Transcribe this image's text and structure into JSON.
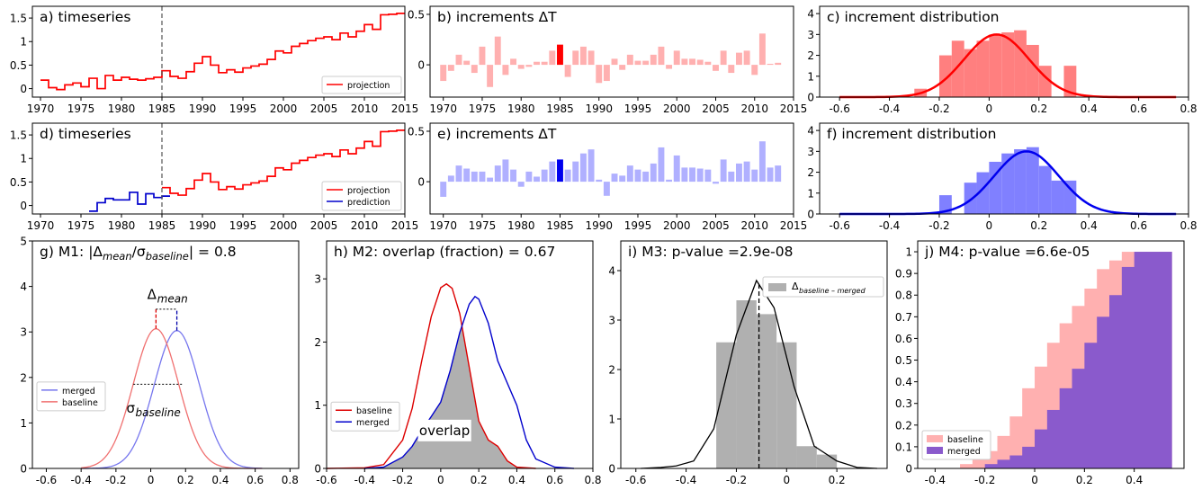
{
  "chart_data": [
    {
      "id": "a",
      "type": "line",
      "title": "a) timeseries",
      "xlim": [
        1969,
        2015
      ],
      "ylim": [
        -0.18,
        1.75
      ],
      "xticks": [
        1970,
        1975,
        1980,
        1985,
        1990,
        1995,
        2000,
        2005,
        2010,
        2015
      ],
      "yticks": [
        0.0,
        0.5,
        1.0,
        1.5
      ],
      "vline": 1985,
      "legend_position": "lower-right",
      "series": [
        {
          "name": "projection",
          "color": "#ff0000",
          "step": true,
          "x": [
            1970,
            1971,
            1972,
            1973,
            1974,
            1975,
            1976,
            1977,
            1978,
            1979,
            1980,
            1981,
            1982,
            1983,
            1984,
            1985,
            1986,
            1987,
            1988,
            1989,
            1990,
            1991,
            1992,
            1993,
            1994,
            1995,
            1996,
            1997,
            1998,
            1999,
            2000,
            2001,
            2002,
            2003,
            2004,
            2005,
            2006,
            2007,
            2008,
            2009,
            2010,
            2011,
            2012,
            2013,
            2014
          ],
          "y": [
            0.18,
            0.02,
            -0.02,
            0.08,
            0.12,
            0.04,
            0.22,
            0.0,
            0.28,
            0.18,
            0.24,
            0.2,
            0.18,
            0.21,
            0.24,
            0.38,
            0.26,
            0.22,
            0.36,
            0.54,
            0.68,
            0.5,
            0.34,
            0.4,
            0.35,
            0.44,
            0.48,
            0.52,
            0.62,
            0.8,
            0.76,
            0.9,
            0.96,
            1.02,
            1.07,
            1.1,
            1.04,
            1.18,
            1.1,
            1.22,
            1.36,
            1.26,
            1.57,
            1.58,
            1.6
          ]
        }
      ]
    },
    {
      "id": "b",
      "type": "bar",
      "title": "b) increments ΔT",
      "xlim": [
        1968.3,
        2015
      ],
      "ylim": [
        -0.32,
        0.58
      ],
      "xticks": [
        1970,
        1975,
        1980,
        1985,
        1990,
        1995,
        2000,
        2005,
        2010,
        2015
      ],
      "yticks": [
        0.0,
        0.5
      ],
      "color": "#ffb0b0",
      "highlight": {
        "x": 1985,
        "color": "#ff0000"
      },
      "x": [
        1970,
        1971,
        1972,
        1973,
        1974,
        1975,
        1976,
        1977,
        1978,
        1979,
        1980,
        1981,
        1982,
        1983,
        1984,
        1985,
        1986,
        1987,
        1988,
        1989,
        1990,
        1991,
        1992,
        1993,
        1994,
        1995,
        1996,
        1997,
        1998,
        1999,
        2000,
        2001,
        2002,
        2003,
        2004,
        2005,
        2006,
        2007,
        2008,
        2009,
        2010,
        2011,
        2012,
        2013
      ],
      "values": [
        -0.16,
        -0.06,
        0.1,
        0.04,
        -0.08,
        0.18,
        -0.22,
        0.28,
        -0.1,
        0.06,
        -0.04,
        -0.02,
        0.03,
        0.03,
        0.14,
        0.2,
        -0.12,
        0.14,
        0.18,
        0.14,
        -0.18,
        -0.16,
        0.06,
        -0.05,
        0.1,
        0.04,
        0.04,
        0.1,
        0.18,
        -0.04,
        0.14,
        0.06,
        0.06,
        0.05,
        0.03,
        -0.06,
        0.14,
        -0.08,
        0.12,
        0.14,
        -0.1,
        0.31,
        0.01,
        0.02
      ]
    },
    {
      "id": "c",
      "type": "bar",
      "title": "c) increment distribution",
      "xlim": [
        -0.68,
        0.8
      ],
      "ylim": [
        0,
        4.35
      ],
      "xticks": [
        -0.6,
        -0.4,
        -0.2,
        0.0,
        0.2,
        0.4,
        0.6,
        0.8
      ],
      "yticks": [
        0,
        1,
        2,
        3,
        4
      ],
      "color": "#ff7f7f",
      "bin_width": 0.05,
      "bins": [
        -0.3,
        -0.25,
        -0.2,
        -0.15,
        -0.1,
        -0.05,
        0.0,
        0.05,
        0.1,
        0.15,
        0.2,
        0.25,
        0.3
      ],
      "values": [
        0.4,
        0.0,
        2.0,
        2.7,
        2.3,
        2.7,
        3.0,
        3.1,
        3.2,
        2.5,
        1.5,
        0.0,
        1.5
      ],
      "curve": {
        "color": "#ff0000",
        "mean": 0.03,
        "sd": 0.13,
        "peak": 3.0,
        "xmin": -0.6,
        "xmax": 0.75
      }
    },
    {
      "id": "d",
      "type": "line",
      "title": "d) timeseries",
      "xlim": [
        1969,
        2015
      ],
      "ylim": [
        -0.18,
        1.75
      ],
      "xticks": [
        1970,
        1975,
        1980,
        1985,
        1990,
        1995,
        2000,
        2005,
        2010,
        2015
      ],
      "yticks": [
        0.0,
        0.5,
        1.0,
        1.5
      ],
      "vline": 1985,
      "legend_position": "lower-right",
      "series": [
        {
          "name": "projection",
          "color": "#ff0000",
          "step": true,
          "x": [
            1985,
            1986,
            1987,
            1988,
            1989,
            1990,
            1991,
            1992,
            1993,
            1994,
            1995,
            1996,
            1997,
            1998,
            1999,
            2000,
            2001,
            2002,
            2003,
            2004,
            2005,
            2006,
            2007,
            2008,
            2009,
            2010,
            2011,
            2012,
            2013,
            2014
          ],
          "y": [
            0.38,
            0.26,
            0.22,
            0.36,
            0.54,
            0.68,
            0.5,
            0.34,
            0.4,
            0.35,
            0.44,
            0.48,
            0.52,
            0.62,
            0.8,
            0.76,
            0.9,
            0.96,
            1.02,
            1.07,
            1.1,
            1.04,
            1.18,
            1.1,
            1.22,
            1.36,
            1.26,
            1.57,
            1.58,
            1.6
          ]
        },
        {
          "name": "prediction",
          "color": "#0000cc",
          "step": true,
          "x": [
            1976,
            1977,
            1978,
            1979,
            1980,
            1981,
            1982,
            1983,
            1984,
            1985
          ],
          "y": [
            -0.12,
            0.06,
            0.15,
            0.12,
            0.12,
            0.28,
            0.03,
            0.25,
            0.17,
            0.2
          ]
        }
      ]
    },
    {
      "id": "e",
      "type": "bar",
      "title": "e) increments ΔT",
      "xlim": [
        1968.3,
        2015
      ],
      "ylim": [
        -0.32,
        0.58
      ],
      "xticks": [
        1970,
        1975,
        1980,
        1985,
        1990,
        1995,
        2000,
        2005,
        2010,
        2015
      ],
      "yticks": [
        0.0,
        0.5
      ],
      "color": "#b0b0ff",
      "highlight": {
        "x": 1985,
        "color": "#0000ee"
      },
      "x": [
        1970,
        1971,
        1972,
        1973,
        1974,
        1975,
        1976,
        1977,
        1978,
        1979,
        1980,
        1981,
        1982,
        1983,
        1984,
        1985,
        1986,
        1987,
        1988,
        1989,
        1990,
        1991,
        1992,
        1993,
        1994,
        1995,
        1996,
        1997,
        1998,
        1999,
        2000,
        2001,
        2002,
        2003,
        2004,
        2005,
        2006,
        2007,
        2008,
        2009,
        2010,
        2011,
        2012,
        2013
      ],
      "values": [
        -0.15,
        0.06,
        0.16,
        0.13,
        0.1,
        0.1,
        0.04,
        0.16,
        0.22,
        0.12,
        -0.05,
        0.1,
        0.05,
        0.12,
        0.2,
        0.22,
        0.12,
        0.2,
        0.28,
        0.32,
        0.02,
        -0.14,
        0.08,
        0.06,
        0.16,
        0.12,
        0.1,
        0.18,
        0.34,
        0.02,
        0.26,
        0.14,
        0.14,
        0.13,
        0.12,
        -0.02,
        0.22,
        0.1,
        0.18,
        0.2,
        0.12,
        0.4,
        0.14,
        0.16
      ]
    },
    {
      "id": "f",
      "type": "bar",
      "title": "f) increment distribution",
      "xlim": [
        -0.68,
        0.8
      ],
      "ylim": [
        0,
        4.35
      ],
      "xticks": [
        -0.6,
        -0.4,
        -0.2,
        0.0,
        0.2,
        0.4,
        0.6,
        0.8
      ],
      "yticks": [
        0,
        1,
        2,
        3,
        4
      ],
      "color": "#8080ff",
      "bin_width": 0.05,
      "bins": [
        -0.2,
        -0.15,
        -0.1,
        -0.05,
        0.0,
        0.05,
        0.1,
        0.15,
        0.2,
        0.25,
        0.3
      ],
      "values": [
        0.9,
        0.0,
        1.5,
        2.0,
        2.5,
        2.9,
        3.1,
        3.2,
        2.3,
        1.6,
        1.6
      ],
      "curve": {
        "color": "#0000ee",
        "mean": 0.15,
        "sd": 0.13,
        "peak": 3.0,
        "xmin": -0.6,
        "xmax": 0.75
      }
    },
    {
      "id": "g",
      "type": "line",
      "title": "g) M1: |Δ",
      "title_parts": [
        "g) M1: |Δ",
        "mean",
        "/σ",
        "baseline",
        "| = 0.8"
      ],
      "xlim": [
        -0.68,
        0.85
      ],
      "ylim": [
        0,
        5
      ],
      "xticks": [
        -0.6,
        -0.4,
        -0.2,
        0.0,
        0.2,
        0.4,
        0.6,
        0.8
      ],
      "yticks": [
        0,
        1,
        2,
        3,
        4,
        5
      ],
      "legend_position": "center-left",
      "series": [
        {
          "name": "merged",
          "color": "#7777ee",
          "mean": 0.15,
          "sd": 0.13,
          "peak": 3.03
        },
        {
          "name": "baseline",
          "color": "#f07070",
          "mean": 0.03,
          "sd": 0.13,
          "peak": 3.07
        }
      ],
      "annotations": {
        "delta_mean": "Δ",
        "delta_mean_sub": "mean",
        "sigma": "σ",
        "sigma_sub": "baseline"
      }
    },
    {
      "id": "h",
      "type": "area",
      "title": "h) M2: overlap (fraction) = 0.67",
      "xlim": [
        -0.6,
        0.8
      ],
      "ylim": [
        0,
        3.6
      ],
      "xticks": [
        -0.6,
        -0.4,
        -0.2,
        0.0,
        0.2,
        0.4,
        0.6,
        0.8
      ],
      "yticks": [
        0,
        1,
        2,
        3
      ],
      "legend_position": "center-left",
      "series": [
        {
          "name": "baseline",
          "color": "#dd0000",
          "x": [
            -0.6,
            -0.4,
            -0.3,
            -0.2,
            -0.15,
            -0.1,
            -0.05,
            0.0,
            0.03,
            0.06,
            0.1,
            0.15,
            0.2,
            0.25,
            0.3,
            0.35,
            0.4,
            0.5
          ],
          "y": [
            0,
            0.01,
            0.06,
            0.45,
            0.95,
            1.7,
            2.4,
            2.86,
            2.92,
            2.85,
            2.45,
            1.6,
            0.75,
            0.45,
            0.35,
            0.12,
            0.02,
            0
          ]
        },
        {
          "name": "merged",
          "color": "#0000cc",
          "x": [
            -0.4,
            -0.3,
            -0.2,
            -0.15,
            -0.1,
            -0.05,
            0.0,
            0.05,
            0.1,
            0.15,
            0.18,
            0.2,
            0.25,
            0.3,
            0.35,
            0.4,
            0.45,
            0.5,
            0.6,
            0.7
          ],
          "y": [
            0,
            0.02,
            0.18,
            0.35,
            0.6,
            0.82,
            1.05,
            1.55,
            2.15,
            2.6,
            2.72,
            2.68,
            2.3,
            1.7,
            1.35,
            1.0,
            0.45,
            0.15,
            0.02,
            0
          ]
        }
      ],
      "overlap_label": "overlap"
    },
    {
      "id": "i",
      "type": "bar",
      "title": "i) M3: p-value =2.9e-08",
      "xlim": [
        -0.66,
        0.4
      ],
      "ylim": [
        0,
        4.6
      ],
      "xticks": [
        -0.6,
        -0.4,
        -0.2,
        0.0,
        0.2
      ],
      "yticks": [
        0,
        1,
        2,
        3,
        4
      ],
      "color": "#b0b0b0",
      "legend_position": "upper-right",
      "legend_label": "Δ",
      "legend_label_sub": "baseline – merged",
      "bins": [
        -0.28,
        -0.2,
        -0.12,
        -0.04,
        0.04,
        0.12
      ],
      "bin_width": 0.08,
      "values": [
        2.55,
        3.4,
        3.12,
        2.55,
        0.45,
        0.28
      ],
      "line": {
        "color": "#000000",
        "x": [
          -0.58,
          -0.5,
          -0.44,
          -0.37,
          -0.29,
          -0.2,
          -0.12,
          -0.05,
          0.03,
          0.11,
          0.2,
          0.28,
          0.36
        ],
        "y": [
          0.0,
          0.02,
          0.05,
          0.15,
          0.8,
          2.7,
          3.8,
          3.25,
          1.65,
          0.45,
          0.15,
          0.02,
          0.0
        ]
      },
      "vline": -0.11
    },
    {
      "id": "j",
      "type": "bar",
      "title": "j) M4: p-value =6.6e-05",
      "xlim": [
        -0.47,
        0.6
      ],
      "ylim": [
        0,
        1.05
      ],
      "xticks": [
        -0.4,
        -0.2,
        0.0,
        0.2,
        0.4
      ],
      "yticks": [
        0.0,
        0.1,
        0.2,
        0.3,
        0.4,
        0.5,
        0.6,
        0.7,
        0.8,
        0.9,
        1.0
      ],
      "legend_position": "lower-left",
      "bin_width": 0.05,
      "series": [
        {
          "name": "baseline",
          "color": "#ffb0b0",
          "bins": [
            -0.3,
            -0.25,
            -0.2,
            -0.15,
            -0.1,
            -0.05,
            0.0,
            0.05,
            0.1,
            0.15,
            0.2,
            0.25,
            0.3,
            0.35,
            0.4,
            0.45,
            0.5
          ],
          "values": [
            0.02,
            0.05,
            0.08,
            0.15,
            0.24,
            0.37,
            0.47,
            0.58,
            0.67,
            0.75,
            0.83,
            0.92,
            0.96,
            1.0,
            1.0,
            1.0,
            1.0
          ]
        },
        {
          "name": "merged",
          "color": "#8a5acc",
          "bins": [
            -0.2,
            -0.15,
            -0.1,
            -0.05,
            0.0,
            0.05,
            0.1,
            0.15,
            0.2,
            0.25,
            0.3,
            0.35,
            0.4,
            0.45,
            0.5
          ],
          "values": [
            0.02,
            0.04,
            0.06,
            0.1,
            0.18,
            0.27,
            0.37,
            0.46,
            0.58,
            0.7,
            0.8,
            0.93,
            1.0,
            1.0,
            1.0
          ]
        }
      ]
    }
  ]
}
